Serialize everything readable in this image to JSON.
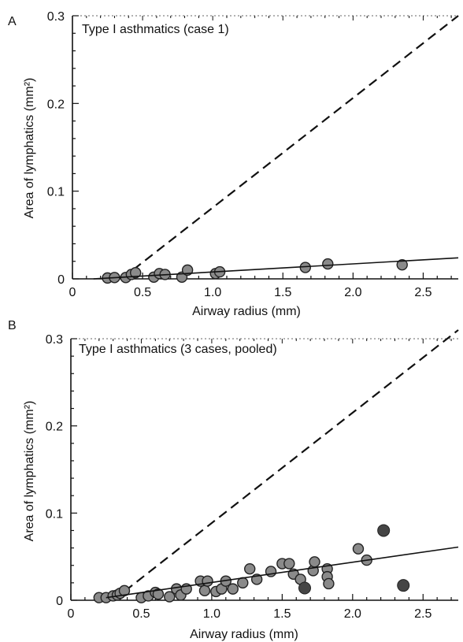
{
  "chart_data": [
    {
      "panel": "A",
      "type": "scatter",
      "annotation": "Type I asthmatics (case 1)",
      "xlabel": "Airway radius (mm)",
      "ylabel": "Area of lymphatics (mm²)",
      "xlim": [
        0,
        2.75
      ],
      "ylim": [
        0,
        0.3
      ],
      "xticks": [
        "0",
        "0.5",
        "1.0",
        "1.5",
        "2.0",
        "2.5"
      ],
      "yticks": [
        "0",
        "0.1",
        "0.2",
        "0.3"
      ],
      "points_gray": [
        {
          "x": 0.25,
          "y": 0.001
        },
        {
          "x": 0.3,
          "y": 0.0015
        },
        {
          "x": 0.38,
          "y": 0.0015
        },
        {
          "x": 0.42,
          "y": 0.005
        },
        {
          "x": 0.45,
          "y": 0.007
        },
        {
          "x": 0.58,
          "y": 0.002
        },
        {
          "x": 0.62,
          "y": 0.006
        },
        {
          "x": 0.66,
          "y": 0.005
        },
        {
          "x": 0.78,
          "y": 0.002
        },
        {
          "x": 0.82,
          "y": 0.01
        },
        {
          "x": 1.02,
          "y": 0.006
        },
        {
          "x": 1.05,
          "y": 0.008
        },
        {
          "x": 1.66,
          "y": 0.013
        },
        {
          "x": 1.82,
          "y": 0.017
        },
        {
          "x": 2.35,
          "y": 0.016
        }
      ],
      "points_dark": [],
      "solid_line": {
        "x": [
          0.15,
          2.75
        ],
        "y": [
          0.0,
          0.024
        ]
      },
      "dashed_line": {
        "x": [
          0.35,
          2.75
        ],
        "y": [
          0.0,
          0.3
        ]
      }
    },
    {
      "panel": "B",
      "type": "scatter",
      "annotation": "Type I asthmatics (3 cases, pooled)",
      "xlabel": "Airway radius (mm)",
      "ylabel": "Area of lymphatics (mm²)",
      "xlim": [
        0,
        2.75
      ],
      "ylim": [
        0,
        0.3
      ],
      "xticks": [
        "0",
        "0.5",
        "1.0",
        "1.5",
        "2.0",
        "2.5"
      ],
      "yticks": [
        "0",
        "0.1",
        "0.2",
        "0.3"
      ],
      "points_gray": [
        {
          "x": 0.2,
          "y": 0.003
        },
        {
          "x": 0.25,
          "y": 0.003
        },
        {
          "x": 0.3,
          "y": 0.005
        },
        {
          "x": 0.33,
          "y": 0.006
        },
        {
          "x": 0.35,
          "y": 0.008
        },
        {
          "x": 0.38,
          "y": 0.011
        },
        {
          "x": 0.5,
          "y": 0.003
        },
        {
          "x": 0.55,
          "y": 0.005
        },
        {
          "x": 0.6,
          "y": 0.009
        },
        {
          "x": 0.62,
          "y": 0.007
        },
        {
          "x": 0.7,
          "y": 0.004
        },
        {
          "x": 0.75,
          "y": 0.013
        },
        {
          "x": 0.78,
          "y": 0.006
        },
        {
          "x": 0.82,
          "y": 0.013
        },
        {
          "x": 0.92,
          "y": 0.022
        },
        {
          "x": 0.95,
          "y": 0.011
        },
        {
          "x": 0.97,
          "y": 0.022
        },
        {
          "x": 1.03,
          "y": 0.01
        },
        {
          "x": 1.07,
          "y": 0.013
        },
        {
          "x": 1.1,
          "y": 0.022
        },
        {
          "x": 1.15,
          "y": 0.013
        },
        {
          "x": 1.22,
          "y": 0.02
        },
        {
          "x": 1.27,
          "y": 0.036
        },
        {
          "x": 1.32,
          "y": 0.024
        },
        {
          "x": 1.42,
          "y": 0.033
        },
        {
          "x": 1.5,
          "y": 0.042
        },
        {
          "x": 1.55,
          "y": 0.042
        },
        {
          "x": 1.58,
          "y": 0.03
        },
        {
          "x": 1.63,
          "y": 0.024
        },
        {
          "x": 1.72,
          "y": 0.034
        },
        {
          "x": 1.73,
          "y": 0.044
        },
        {
          "x": 1.82,
          "y": 0.036
        },
        {
          "x": 1.82,
          "y": 0.027
        },
        {
          "x": 1.83,
          "y": 0.019
        },
        {
          "x": 2.04,
          "y": 0.059
        },
        {
          "x": 2.1,
          "y": 0.046
        }
      ],
      "points_dark": [
        {
          "x": 1.66,
          "y": 0.014
        },
        {
          "x": 2.22,
          "y": 0.08
        },
        {
          "x": 2.36,
          "y": 0.017
        }
      ],
      "solid_line": {
        "x": [
          0.25,
          2.75
        ],
        "y": [
          0.003,
          0.061
        ]
      },
      "dashed_line": {
        "x": [
          0.3,
          2.75
        ],
        "y": [
          0.0,
          0.31
        ]
      }
    }
  ],
  "panel_labels": [
    "A",
    "B"
  ],
  "colors": {
    "gray_marker": "#8a8a8a",
    "dark_marker": "#454545",
    "line": "#111111"
  }
}
